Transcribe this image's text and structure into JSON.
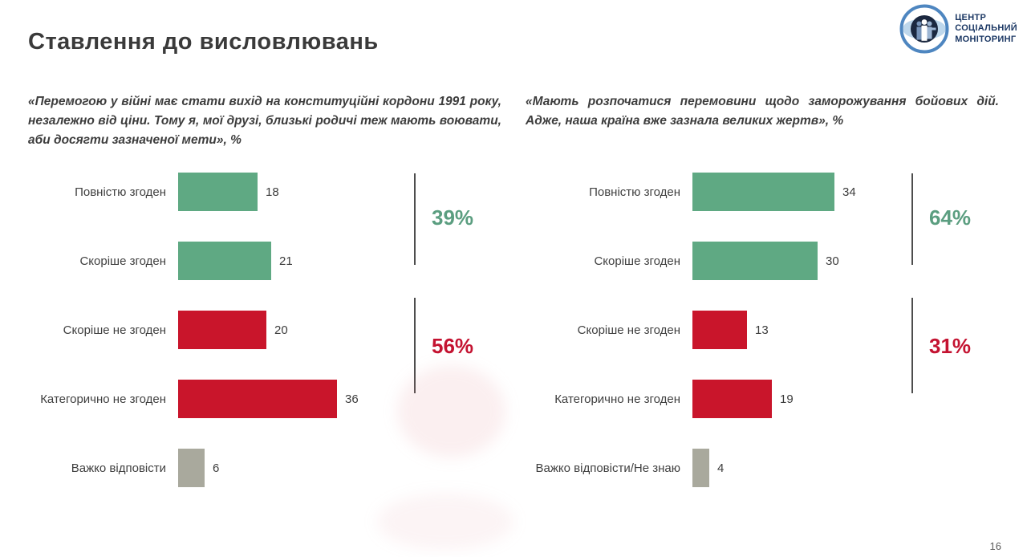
{
  "page": {
    "title": "Ставлення до висловлювань",
    "page_number": "16"
  },
  "logo": {
    "org_lines": [
      "ЦЕНТР",
      "СОЦІАЛЬНИЙ",
      "МОНІТОРИНГ"
    ],
    "colors": {
      "ring_blue": "#4E86C0",
      "ellipse_blue": "#BDD7EC",
      "navy": "#1B2840",
      "text_navy": "#1C3864"
    }
  },
  "colors": {
    "agree_green": "#5FA983",
    "disagree_red": "#C9152B",
    "neutral_gray": "#A9A99D",
    "summary_green": "#5B9E80",
    "summary_red": "#C41331"
  },
  "chart_data": [
    {
      "type": "bar",
      "orientation": "horizontal",
      "title": "«Перемогою у війні має стати вихід на конституційні кордони 1991 року, незалежно від ціни. Тому я, мої друзі, близькі родичі теж мають воювати, аби досягти зазначеної мети», %",
      "categories": [
        "Повністю згоден",
        "Скоріше згоден",
        "Скоріше не згоден",
        "Категорично не згоден",
        "Важко відповісти"
      ],
      "values": [
        18,
        21,
        20,
        36,
        6
      ],
      "bar_colors": [
        "#5FA983",
        "#5FA983",
        "#C9152B",
        "#C9152B",
        "#A9A99D"
      ],
      "xlim": [
        0,
        40
      ],
      "grid": false,
      "value_labels": true,
      "summaries": [
        {
          "label": "39%",
          "color": "#5B9E80",
          "covers": [
            "Повністю згоден",
            "Скоріше згоден"
          ]
        },
        {
          "label": "56%",
          "color": "#C41331",
          "covers": [
            "Скоріше не згоден",
            "Категорично не згоден"
          ]
        }
      ]
    },
    {
      "type": "bar",
      "orientation": "horizontal",
      "title": "«Мають розпочатися перемовини щодо заморожування бойових дій. Адже, наша країна вже зазнала великих жертв», %",
      "categories": [
        "Повністю згоден",
        "Скоріше згоден",
        "Скоріше не згоден",
        "Категорично не згоден",
        "Важко відповісти/Не знаю"
      ],
      "values": [
        34,
        30,
        13,
        19,
        4
      ],
      "bar_colors": [
        "#5FA983",
        "#5FA983",
        "#C9152B",
        "#C9152B",
        "#A9A99D"
      ],
      "xlim": [
        0,
        40
      ],
      "grid": false,
      "value_labels": true,
      "summaries": [
        {
          "label": "64%",
          "color": "#5B9E80",
          "covers": [
            "Повністю згоден",
            "Скоріше згоден"
          ]
        },
        {
          "label": "31%",
          "color": "#C41331",
          "covers": [
            "Скоріше не згоден",
            "Категорично не згоден"
          ]
        }
      ]
    }
  ]
}
